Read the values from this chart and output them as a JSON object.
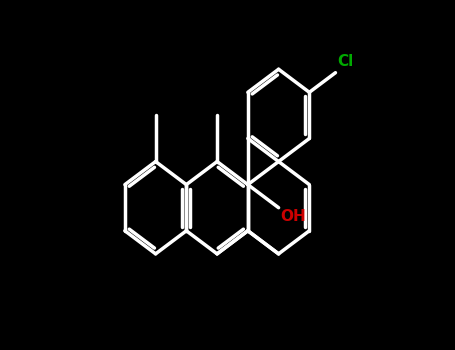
{
  "bg_color": "#000000",
  "bond_color": "#ffffff",
  "oh_color": "#cc0000",
  "cl_color": "#00aa00",
  "lw": 2.5,
  "dbo": 0.012,
  "figsize": [
    4.55,
    3.5
  ],
  "dpi": 100
}
